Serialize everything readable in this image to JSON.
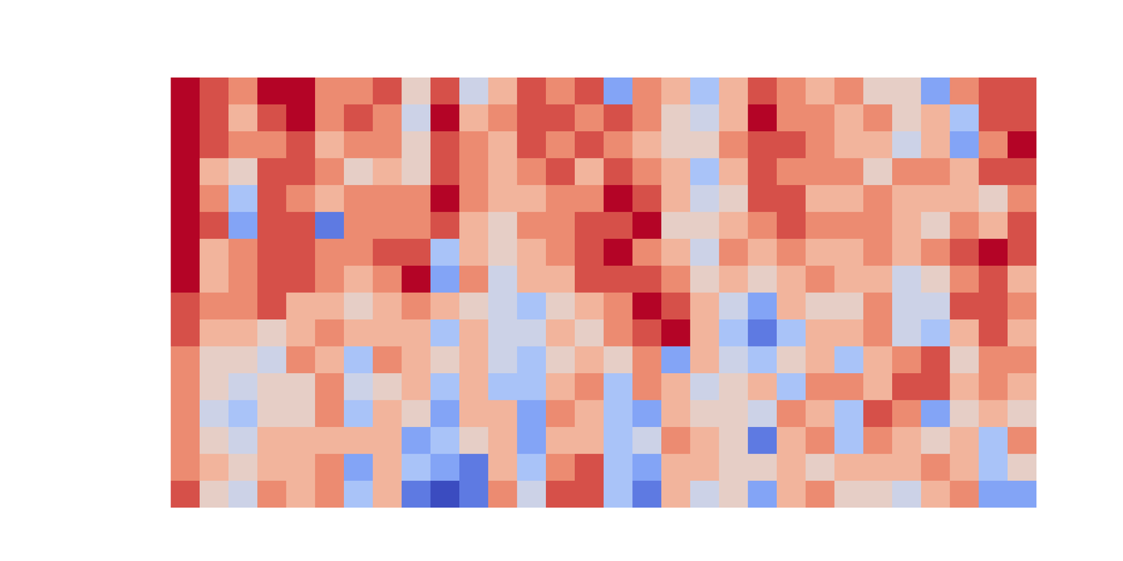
{
  "chart_data": {
    "type": "heatmap",
    "tick_labels": false,
    "zlim": [
      0,
      9
    ],
    "values": [
      [
        9,
        8,
        7,
        9,
        9,
        7,
        7,
        8,
        5,
        8,
        4,
        6,
        8,
        7,
        8,
        2,
        7,
        6,
        3,
        6,
        8,
        7,
        6,
        7,
        5,
        5,
        2,
        7,
        8,
        8
      ],
      [
        9,
        8,
        6,
        8,
        9,
        7,
        8,
        7,
        4,
        9,
        6,
        7,
        8,
        8,
        7,
        8,
        7,
        5,
        4,
        6,
        9,
        7,
        7,
        6,
        7,
        5,
        6,
        3,
        8,
        8
      ],
      [
        9,
        8,
        7,
        7,
        8,
        6,
        7,
        7,
        5,
        8,
        7,
        6,
        8,
        7,
        8,
        7,
        6,
        5,
        5,
        7,
        8,
        8,
        7,
        6,
        6,
        4,
        6,
        2,
        7,
        9
      ],
      [
        9,
        6,
        5,
        8,
        8,
        7,
        5,
        6,
        5,
        8,
        7,
        6,
        7,
        8,
        6,
        8,
        7,
        6,
        3,
        6,
        8,
        7,
        7,
        7,
        5,
        7,
        7,
        6,
        8,
        8
      ],
      [
        9,
        7,
        3,
        8,
        7,
        6,
        7,
        7,
        7,
        9,
        7,
        6,
        6,
        7,
        7,
        9,
        8,
        6,
        4,
        5,
        8,
        8,
        6,
        6,
        7,
        6,
        6,
        6,
        5,
        7
      ],
      [
        9,
        8,
        2,
        8,
        8,
        1,
        7,
        7,
        7,
        8,
        6,
        5,
        7,
        7,
        8,
        8,
        9,
        5,
        5,
        6,
        7,
        8,
        7,
        7,
        7,
        6,
        5,
        7,
        6,
        8
      ],
      [
        9,
        6,
        7,
        8,
        8,
        7,
        7,
        8,
        8,
        3,
        6,
        5,
        6,
        7,
        8,
        9,
        7,
        6,
        4,
        7,
        6,
        7,
        6,
        6,
        7,
        6,
        7,
        8,
        9,
        8
      ],
      [
        9,
        6,
        7,
        8,
        8,
        7,
        6,
        7,
        9,
        2,
        7,
        4,
        6,
        6,
        8,
        8,
        8,
        7,
        5,
        6,
        5,
        6,
        7,
        6,
        6,
        4,
        5,
        7,
        8,
        6
      ],
      [
        8,
        7,
        7,
        8,
        6,
        6,
        5,
        6,
        7,
        6,
        5,
        4,
        3,
        5,
        6,
        7,
        9,
        8,
        6,
        4,
        2,
        6,
        5,
        5,
        7,
        4,
        4,
        8,
        8,
        7
      ],
      [
        8,
        6,
        6,
        5,
        6,
        7,
        6,
        6,
        6,
        3,
        6,
        4,
        4,
        6,
        5,
        7,
        8,
        9,
        6,
        3,
        1,
        3,
        6,
        6,
        7,
        4,
        3,
        6,
        8,
        6
      ],
      [
        7,
        5,
        5,
        4,
        7,
        6,
        3,
        7,
        6,
        5,
        6,
        4,
        3,
        5,
        6,
        5,
        7,
        2,
        6,
        4,
        3,
        5,
        6,
        3,
        6,
        7,
        8,
        5,
        7,
        7
      ],
      [
        7,
        5,
        4,
        5,
        5,
        7,
        4,
        5,
        6,
        3,
        6,
        3,
        3,
        6,
        7,
        3,
        7,
        6,
        4,
        5,
        6,
        3,
        7,
        7,
        6,
        8,
        8,
        6,
        7,
        6
      ],
      [
        7,
        4,
        3,
        5,
        5,
        7,
        3,
        6,
        5,
        2,
        6,
        6,
        2,
        7,
        6,
        3,
        2,
        6,
        5,
        5,
        4,
        7,
        6,
        3,
        8,
        7,
        2,
        5,
        6,
        5
      ],
      [
        7,
        5,
        4,
        6,
        6,
        6,
        6,
        6,
        2,
        3,
        5,
        6,
        2,
        6,
        6,
        3,
        4,
        7,
        6,
        5,
        1,
        6,
        7,
        3,
        7,
        6,
        5,
        6,
        3,
        7
      ],
      [
        7,
        6,
        5,
        6,
        6,
        7,
        2,
        6,
        3,
        2,
        1,
        6,
        3,
        7,
        8,
        3,
        2,
        6,
        6,
        5,
        5,
        6,
        5,
        6,
        6,
        6,
        7,
        6,
        3,
        5
      ],
      [
        8,
        5,
        4,
        7,
        6,
        7,
        3,
        6,
        1,
        0,
        1,
        7,
        4,
        8,
        8,
        3,
        1,
        6,
        4,
        5,
        2,
        6,
        7,
        5,
        5,
        4,
        6,
        7,
        2,
        2
      ]
    ]
  }
}
